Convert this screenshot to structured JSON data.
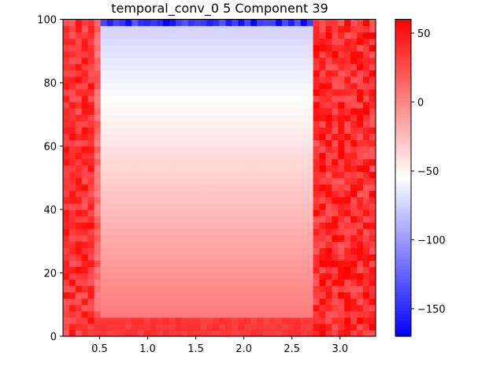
{
  "chart_data": {
    "type": "heatmap",
    "title": "temporal_conv_0 5 Component 39",
    "xlabel": "",
    "ylabel": "",
    "xlim": [
      0.12,
      3.37
    ],
    "ylim": [
      0,
      100
    ],
    "x_ticks": [
      0.5,
      1.0,
      1.5,
      2.0,
      2.5,
      3.0
    ],
    "x_tick_labels": [
      "0.5",
      "1.0",
      "1.5",
      "2.0",
      "2.5",
      "3.0"
    ],
    "y_ticks": [
      0,
      20,
      40,
      60,
      80,
      100
    ],
    "y_tick_labels": [
      "0",
      "20",
      "40",
      "60",
      "80",
      "100"
    ],
    "colormap": "bwr",
    "color_low": "#0000ff",
    "color_mid": "#ffffff",
    "color_high": "#ff0000",
    "vmin": -170,
    "vmax": 60,
    "colorbar_ticks": [
      50,
      0,
      -50,
      -100,
      -150
    ],
    "colorbar_tick_labels": [
      "50",
      "0",
      "−50",
      "−100",
      "−150"
    ],
    "grid": false,
    "regions": [
      {
        "name": "left band",
        "x_range": [
          0.12,
          0.47
        ],
        "y_range": [
          0,
          100
        ],
        "value_range": [
          20,
          55
        ]
      },
      {
        "name": "bottom band",
        "x_range": [
          0.47,
          2.72
        ],
        "y_range": [
          0,
          6
        ],
        "value_range": [
          30,
          40
        ]
      },
      {
        "name": "inner shoulder",
        "x_range": [
          0.47,
          0.54
        ],
        "y_range": [
          6,
          100
        ],
        "value_range": [
          0,
          25
        ]
      },
      {
        "name": "center gradient",
        "x_range": [
          0.54,
          2.72
        ],
        "y_range": [
          6,
          98
        ],
        "values_bottom_to_top": [
          5,
          -75
        ],
        "value_range": [
          -75,
          5
        ]
      },
      {
        "name": "top strip",
        "x_range": [
          0.54,
          2.72
        ],
        "y_range": [
          98,
          100
        ],
        "value_range": [
          -170,
          -130
        ]
      },
      {
        "name": "right band",
        "x_range": [
          2.72,
          3.37
        ],
        "y_range": [
          0,
          100
        ],
        "value_range": [
          20,
          60
        ]
      }
    ]
  }
}
